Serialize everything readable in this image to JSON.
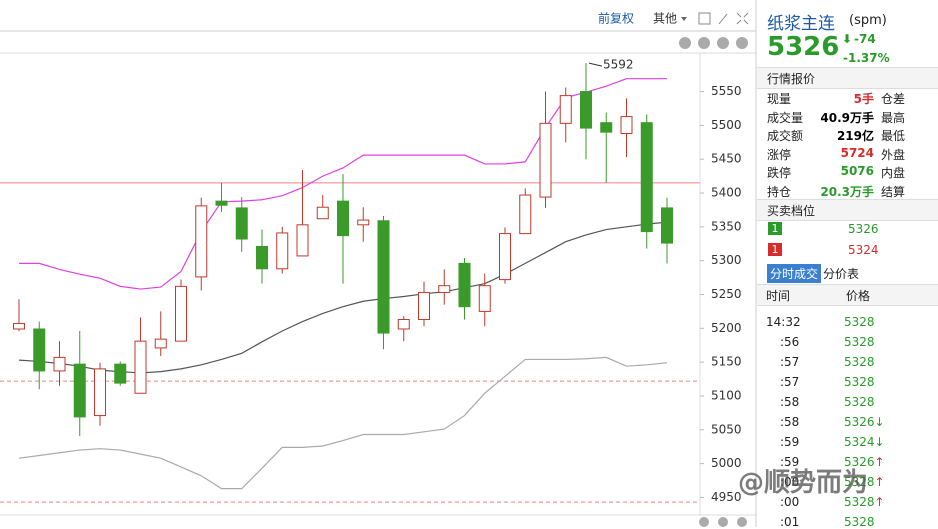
{
  "chart_data": {
    "type": "candlestick",
    "open": [
      5199,
      5199,
      5137,
      5147,
      5071,
      5147,
      5104,
      5171,
      5181,
      5276,
      5388,
      5378,
      5321,
      5288,
      5307,
      5362,
      5388,
      5353,
      5359,
      5199,
      5213,
      5253,
      5296,
      5225,
      5272,
      5340,
      5394,
      5503,
      5550,
      5504,
      5488,
      5504,
      5378
    ],
    "high": [
      5243,
      5210,
      5181,
      5196,
      5149,
      5151,
      5216,
      5225,
      5272,
      5393,
      5415,
      5394,
      5346,
      5350,
      5434,
      5397,
      5428,
      5379,
      5366,
      5218,
      5269,
      5287,
      5304,
      5281,
      5349,
      5407,
      5550,
      5556,
      5592,
      5519,
      5540,
      5516,
      5393
    ],
    "low": [
      5196,
      5110,
      5115,
      5041,
      5056,
      5115,
      5104,
      5159,
      5181,
      5256,
      5372,
      5313,
      5266,
      5281,
      5307,
      5362,
      5266,
      5328,
      5169,
      5181,
      5203,
      5235,
      5213,
      5203,
      5266,
      5340,
      5378,
      5475,
      5450,
      5415,
      5453,
      5318,
      5296
    ],
    "close": [
      5207,
      5137,
      5157,
      5069,
      5140,
      5119,
      5181,
      5184,
      5262,
      5381,
      5382,
      5332,
      5288,
      5341,
      5353,
      5379,
      5337,
      5360,
      5193,
      5213,
      5253,
      5263,
      5232,
      5263,
      5340,
      5397,
      5503,
      5544,
      5496,
      5490,
      5513,
      5343,
      5326
    ],
    "up_color": "#c0392b",
    "down_color": "#3a9a2a",
    "bands": [
      {
        "color": "#e040e0",
        "values": [
          5296,
          5296,
          5287,
          5280,
          5274,
          5262,
          5258,
          5261,
          5284,
          5343,
          5387,
          5388,
          5390,
          5396,
          5408,
          5425,
          5437,
          5456,
          5456,
          5456,
          5456,
          5456,
          5456,
          5443,
          5443,
          5446,
          5497,
          5541,
          5549,
          5558,
          5569,
          5569,
          5569
        ]
      },
      {
        "color": "#555555",
        "values": [
          5153,
          5151,
          5148,
          5144,
          5138,
          5136,
          5134,
          5136,
          5140,
          5146,
          5154,
          5163,
          5180,
          5196,
          5210,
          5222,
          5232,
          5240,
          5244,
          5247,
          5251,
          5254,
          5260,
          5266,
          5280,
          5296,
          5312,
          5328,
          5338,
          5346,
          5350,
          5354,
          5357
        ]
      },
      {
        "color": "#aaaaaa",
        "values": [
          5008,
          5012,
          5016,
          5020,
          5022,
          5020,
          5014,
          5008,
          4995,
          4982,
          4963,
          4963,
          4993,
          5024,
          5024,
          5026,
          5034,
          5043,
          5043,
          5043,
          5047,
          5051,
          5071,
          5104,
          5129,
          5154,
          5154,
          5154,
          5155,
          5157,
          5144,
          5146,
          5149
        ]
      }
    ],
    "reference_lines": [
      {
        "value": 5415,
        "color": "#f08080",
        "dashed": false
      },
      {
        "value": 5122,
        "color": "#f08080",
        "dashed": true
      },
      {
        "value": 4943,
        "color": "#f08080",
        "dashed": true
      }
    ],
    "ylim": [
      4924,
      5607
    ],
    "yticks": [
      4950,
      5000,
      5050,
      5100,
      5150,
      5200,
      5250,
      5300,
      5350,
      5400,
      5450,
      5500,
      5550
    ]
  },
  "toolbar": {
    "items": [
      "前复权",
      "其他"
    ]
  },
  "quote": {
    "name": "纸浆主连",
    "code": "(spm)",
    "price": "5326",
    "change": "-74",
    "change_pct": "-1.37%"
  },
  "market": {
    "title": "行情报价",
    "rows": [
      {
        "label": "现量",
        "value": "5手",
        "color": "#d62c2c",
        "extra": "仓差"
      },
      {
        "label": "成交量",
        "value": "40.9万手",
        "color": "#000000",
        "extra": "最高"
      },
      {
        "label": "成交额",
        "value": "219亿",
        "color": "#000000",
        "extra": "最低"
      },
      {
        "label": "涨停",
        "value": "5724",
        "color": "#d62c2c",
        "extra": "外盘"
      },
      {
        "label": "跌停",
        "value": "5076",
        "color": "#2a9a2a",
        "extra": "内盘"
      },
      {
        "label": "持仓",
        "value": "20.3万手",
        "color": "#2a9a2a",
        "extra": "结算"
      }
    ]
  },
  "book": {
    "title": "买卖档位",
    "rows": [
      {
        "level": "1",
        "price": "5326",
        "color": "#2a9a2a"
      },
      {
        "level": "1",
        "price": "5324",
        "color": "#d62c2c"
      }
    ]
  },
  "trades": {
    "tabs": [
      "分时成交",
      "分价表"
    ],
    "columns": [
      "时间",
      "价格"
    ],
    "rows": [
      [
        "14:32",
        "5328"
      ],
      [
        ":56",
        "5328"
      ],
      [
        ":57",
        "5328"
      ],
      [
        ":57",
        "5328"
      ],
      [
        ":58",
        "5328"
      ],
      [
        ":58",
        "5326↓"
      ],
      [
        ":59",
        "5324↓"
      ],
      [
        ":59",
        "5326↑"
      ],
      [
        ":00",
        "5328↑"
      ],
      [
        ":00",
        "5328↑"
      ],
      [
        ":01",
        "5328"
      ]
    ]
  },
  "watermark": "@顺势而为"
}
